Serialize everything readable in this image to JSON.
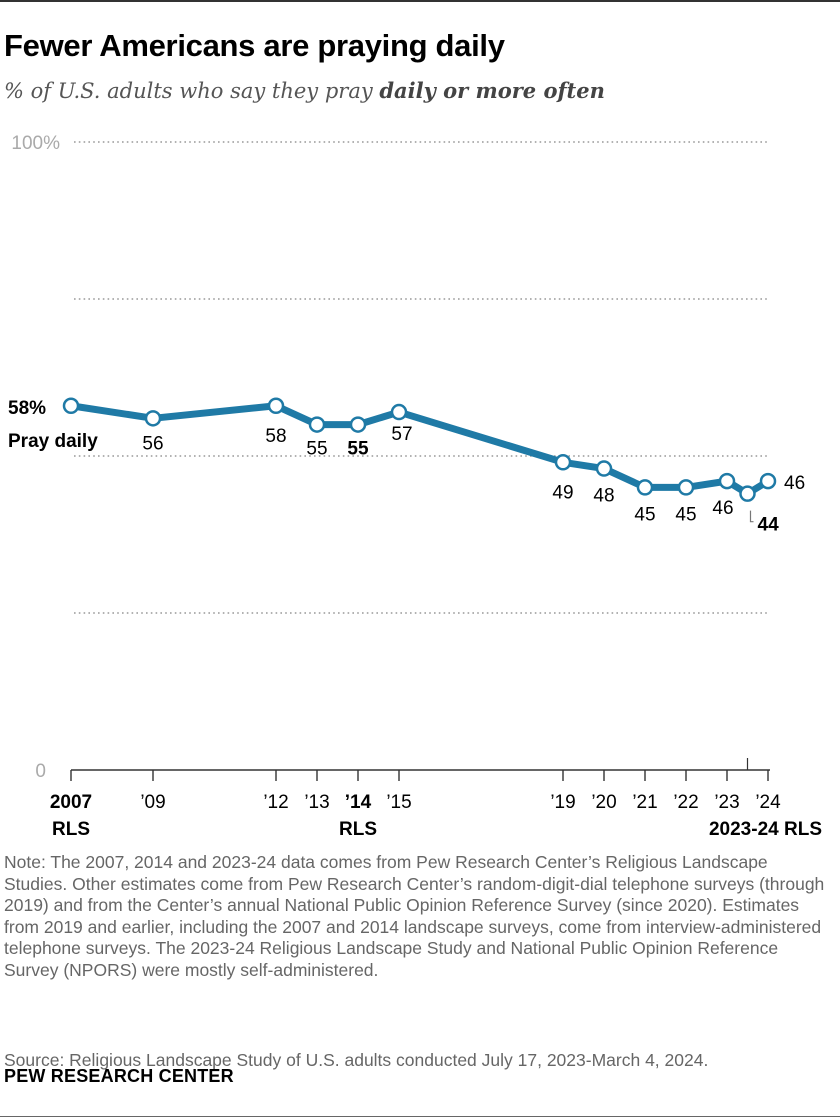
{
  "header": {
    "title": "Fewer Americans are praying daily",
    "subtitle_prefix": "% of U.S. adults who say they pray ",
    "subtitle_emphasis": "daily or more often"
  },
  "chart_data": {
    "type": "line",
    "title": "Fewer Americans are praying daily",
    "subtitle": "% of U.S. adults who say they pray daily or more often",
    "series": [
      {
        "name": "Pray daily",
        "x": [
          2007,
          2009,
          2012,
          2013,
          2014,
          2015,
          2019,
          2020,
          2021,
          2022,
          2023,
          2023.5,
          2024
        ],
        "values": [
          58,
          56,
          58,
          55,
          55,
          57,
          49,
          48,
          45,
          45,
          46,
          44,
          46
        ],
        "labels": [
          "58%",
          "56",
          "58",
          "55",
          "55",
          "57",
          "49",
          "48",
          "45",
          "45",
          "46",
          "44",
          "46"
        ],
        "bold": [
          true,
          false,
          false,
          false,
          true,
          false,
          false,
          false,
          false,
          false,
          false,
          true,
          false
        ]
      }
    ],
    "series_label": "Pray daily",
    "ylim": [
      0,
      100
    ],
    "y_ticks": [
      {
        "value": 0,
        "label": "0"
      },
      {
        "value": 25,
        "label": ""
      },
      {
        "value": 50,
        "label": ""
      },
      {
        "value": 75,
        "label": ""
      },
      {
        "value": 100,
        "label": "100%"
      }
    ],
    "x_ticks": [
      {
        "x": 2007,
        "label": "2007",
        "bold": true
      },
      {
        "x": 2009,
        "label": "’09",
        "bold": false
      },
      {
        "x": 2012,
        "label": "’12",
        "bold": false
      },
      {
        "x": 2013,
        "label": "’13",
        "bold": false
      },
      {
        "x": 2014,
        "label": "’14",
        "bold": true
      },
      {
        "x": 2015,
        "label": "’15",
        "bold": false
      },
      {
        "x": 2019,
        "label": "’19",
        "bold": false
      },
      {
        "x": 2020,
        "label": "’20",
        "bold": false
      },
      {
        "x": 2021,
        "label": "’21",
        "bold": false
      },
      {
        "x": 2022,
        "label": "’22",
        "bold": false
      },
      {
        "x": 2023,
        "label": "’23",
        "bold": false
      },
      {
        "x": 2024,
        "label": "’24",
        "bold": false
      }
    ],
    "x_sublabels": [
      {
        "x": 2007,
        "label": "RLS"
      },
      {
        "x": 2014,
        "label": "RLS"
      },
      {
        "x": 2023.5,
        "label": "2023-24 RLS"
      }
    ],
    "grid": true,
    "line_color": "#1f7aa6"
  },
  "footer": {
    "note": "Note: The 2007, 2014 and 2023-24 data comes from Pew Research Center’s Religious Landscape Studies. Other estimates come from Pew Research Center’s random-digit-dial telephone surveys (through 2019) and from the Center’s annual National Public Opinion Reference Survey (since 2020). Estimates from 2019 and earlier, including the 2007 and 2014 landscape surveys, come from interview-administered telephone surveys. The 2023-24 Religious Landscape Study and National Public Opinion Reference Survey (NPORS) were mostly self-administered.",
    "source": "Source: Religious Landscape Study of U.S. adults conducted July 17, 2023-March 4, 2024.",
    "brand": "PEW RESEARCH CENTER"
  }
}
